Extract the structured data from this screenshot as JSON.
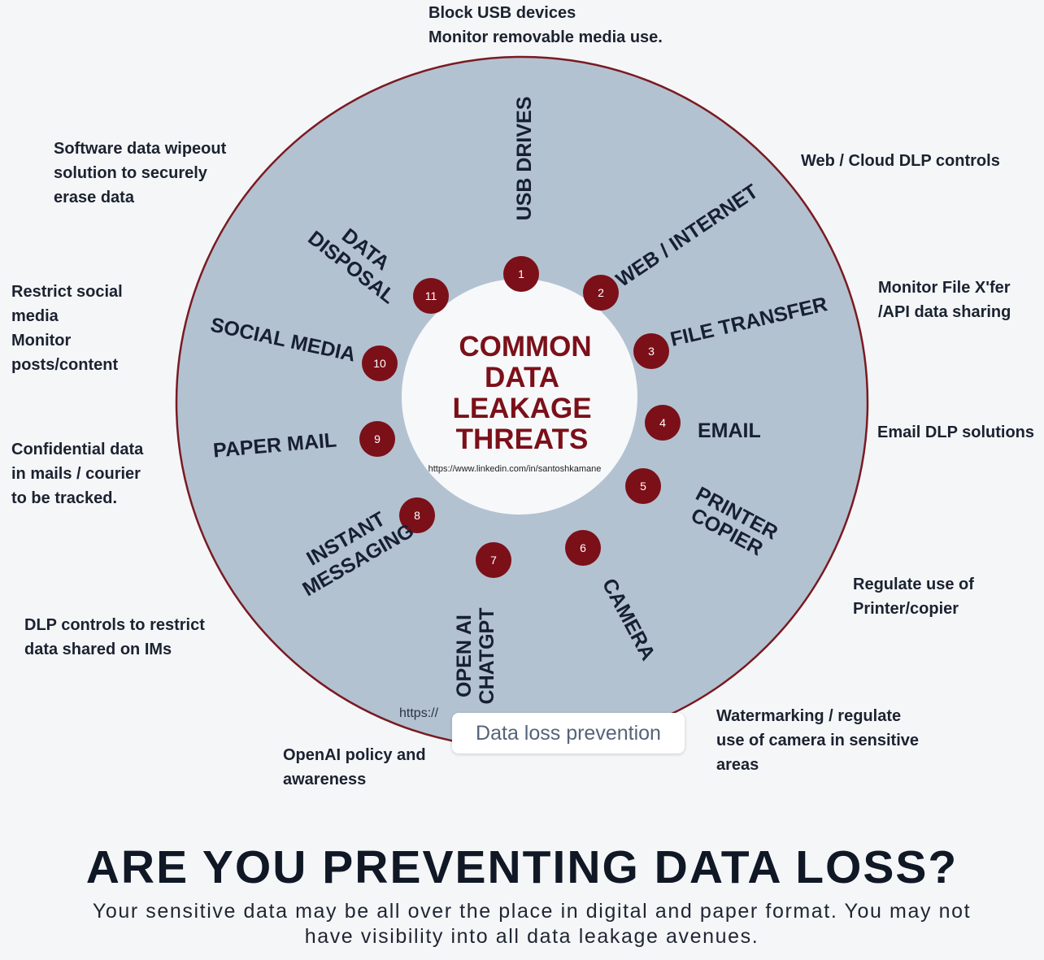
{
  "center_title": [
    "COMMON",
    "DATA",
    "LEAKAGE",
    "THREATS"
  ],
  "center_url": "https://www.linkedin.com/in/santoshkamane",
  "faint_url": "https://",
  "overlay_label": "Data loss prevention",
  "headline": "ARE YOU PREVENTING DATA LOSS?",
  "subtext": "Your sensitive data may be all over the place in digital and paper format. You may not have visibility into all data leakage avenues.",
  "colors": {
    "disc": "#b3c2d1",
    "badge": "#7b1019",
    "title": "#7b1019",
    "ring": "#7a1a22"
  },
  "threats": [
    {
      "num": "1",
      "lines": [
        "USB DRIVES"
      ]
    },
    {
      "num": "2",
      "lines": [
        "WEB / INTERNET"
      ]
    },
    {
      "num": "3",
      "lines": [
        "FILE TRANSFER"
      ]
    },
    {
      "num": "4",
      "lines": [
        "EMAIL"
      ]
    },
    {
      "num": "5",
      "lines": [
        "PRINTER",
        "COPIER"
      ]
    },
    {
      "num": "6",
      "lines": [
        "CAMERA"
      ]
    },
    {
      "num": "7",
      "lines": [
        "OPEN AI",
        "CHATGPT"
      ]
    },
    {
      "num": "8",
      "lines": [
        "INSTANT",
        "MESSAGING"
      ]
    },
    {
      "num": "9",
      "lines": [
        "PAPER  MAIL"
      ]
    },
    {
      "num": "10",
      "lines": [
        "SOCIAL MEDIA"
      ]
    },
    {
      "num": "11",
      "lines": [
        "DATA",
        "DISPOSAL"
      ]
    }
  ],
  "notes": {
    "usb": "Block USB devices\nMonitor removable media use.",
    "web": "Web / Cloud DLP controls",
    "file_transfer": "Monitor File X'fer\n/API data sharing",
    "email": "Email DLP solutions",
    "printer": "Regulate use of\nPrinter/copier",
    "camera": "Watermarking / regulate\nuse of camera in sensitive\nareas",
    "openai": "OpenAI policy and\nawareness",
    "im": "DLP controls to restrict\ndata shared on IMs",
    "paper_mail": "Confidential data\nin mails / courier\nto be tracked.",
    "social": "Restrict social\nmedia\nMonitor\nposts/content",
    "disposal": "Software data wipeout\nsolution to securely\nerase data"
  }
}
